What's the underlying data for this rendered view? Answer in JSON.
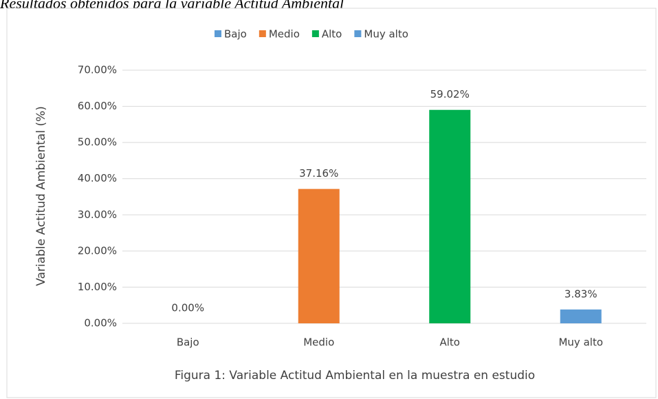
{
  "heading": "Resultados  obtenidos para la variable Actitud Ambiental",
  "chart_data": {
    "type": "bar",
    "y_label": "Variable Actitud Ambiental (%)",
    "caption": "Figura 1:  Variable Actitud  Ambiental  en la muestra en estudio",
    "categories": [
      "Bajo",
      "Medio",
      "Alto",
      "Muy alto"
    ],
    "values": [
      0,
      37.16,
      59.02,
      3.83
    ],
    "value_labels": [
      "0.00%",
      "37.16%",
      "59.02%",
      "3.83%"
    ],
    "colors": [
      "#5b9bd5",
      "#ed7d31",
      "#00b050",
      "#5b9bd5"
    ],
    "ylim": [
      0,
      70
    ],
    "yticks": [
      {
        "value": 0,
        "label": "0.00%"
      },
      {
        "value": 10,
        "label": "10.00%"
      },
      {
        "value": 20,
        "label": "20.00%"
      },
      {
        "value": 30,
        "label": "30.00%"
      },
      {
        "value": 40,
        "label": "40.00%"
      },
      {
        "value": 50,
        "label": "50.00%"
      },
      {
        "value": 60,
        "label": "60.00%"
      },
      {
        "value": 70,
        "label": "70.00%"
      }
    ],
    "grid": true,
    "legend": "top"
  }
}
